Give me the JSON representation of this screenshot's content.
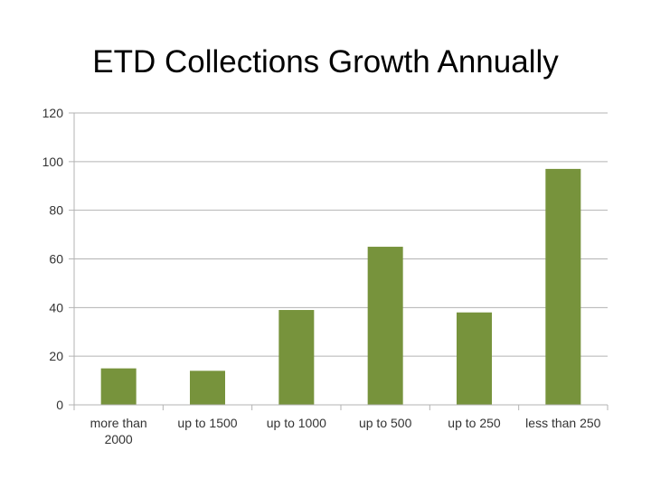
{
  "chart_data": {
    "type": "bar",
    "title": "ETD Collections Growth Annually",
    "xlabel": "",
    "ylabel": "",
    "categories": [
      [
        "more than",
        "2000"
      ],
      [
        "up to 1500"
      ],
      [
        "up to 1000"
      ],
      [
        "up to 500"
      ],
      [
        "up to 250"
      ],
      [
        "less than 250"
      ]
    ],
    "values": [
      15,
      14,
      39,
      65,
      38,
      97
    ],
    "ylim": [
      0,
      120
    ],
    "yticks": [
      "0",
      "20",
      "40",
      "60",
      "80",
      "100",
      "120"
    ],
    "grid": true,
    "legend": "none",
    "bar_color": "#77933c",
    "grid_color": "#b3b3b3"
  }
}
